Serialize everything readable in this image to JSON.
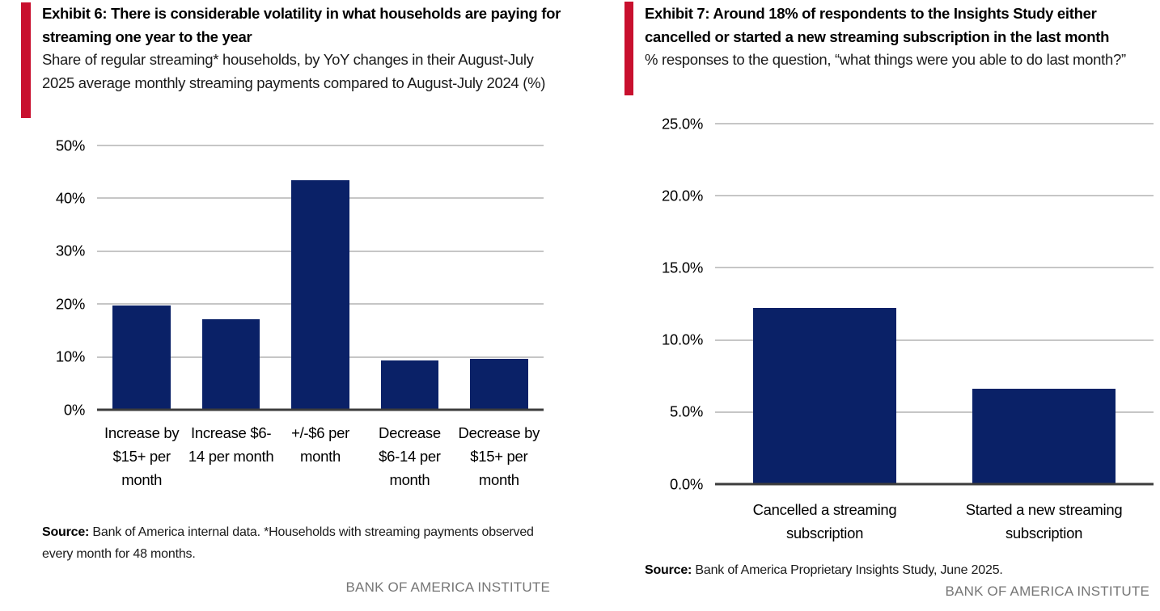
{
  "colors": {
    "accent_red": "#C8102E",
    "bar_navy": "#0A2167",
    "gridline_gray": "#C6C6C6",
    "axis_dark": "#3C3C3C",
    "institute_gray": "#767676"
  },
  "left_panel": {
    "exhibit_title": "Exhibit 6: There is considerable volatility in what households are paying for streaming one year to the year",
    "subtitle": "Share of regular streaming* households, by YoY changes in their August-July 2025 average monthly streaming payments compared to August-July 2024 (%)",
    "source_label": "Source:",
    "source_text": " Bank of America internal data. *Households with streaming payments observed every month for 48 months.",
    "institute": "BANK OF AMERICA INSTITUTE"
  },
  "right_panel": {
    "exhibit_title": "Exhibit 7: Around 18% of respondents to the Insights Study either cancelled or started a new streaming subscription in the last month",
    "subtitle": "% responses to the question, “what things were you able to do last month?”",
    "source_label": "Source:",
    "source_text": " Bank of America Proprietary Insights Study, June 2025.",
    "institute": "BANK OF AMERICA INSTITUTE"
  },
  "chart_data": [
    {
      "type": "bar",
      "title": "Exhibit 6: There is considerable volatility in what households are paying for streaming one year to the year",
      "subtitle": "Share of regular streaming* households, by YoY changes in their August-July 2025 average monthly streaming payments compared to August-July 2024 (%)",
      "categories": [
        "Increase by $15+ per month",
        "Increase $6-14 per month",
        "+/-$6 per month",
        "Decrease $6-14 per month",
        "Decrease by $15+ per month"
      ],
      "values": [
        19.7,
        17.1,
        43.5,
        9.3,
        9.6
      ],
      "unit": "%",
      "xlabel": "",
      "ylabel": "",
      "ylim": [
        0,
        50
      ],
      "ytick_step": 10,
      "yticks": [
        "0%",
        "10%",
        "20%",
        "30%",
        "40%",
        "50%"
      ],
      "grid": true,
      "legend": false,
      "bar_color": "#0A2167"
    },
    {
      "type": "bar",
      "title": "Exhibit 7: Around 18% of respondents to the Insights Study either cancelled or started a new streaming subscription in the last month",
      "subtitle": "% responses to the question, “what things were you able to do last month?”",
      "categories": [
        "Cancelled a streaming subscription",
        "Started a new streaming subscription"
      ],
      "values": [
        12.2,
        6.6
      ],
      "unit": "%",
      "xlabel": "",
      "ylabel": "",
      "ylim": [
        0,
        25
      ],
      "ytick_step": 5,
      "yticks": [
        "0.0%",
        "5.0%",
        "10.0%",
        "15.0%",
        "20.0%",
        "25.0%"
      ],
      "grid": true,
      "legend": false,
      "bar_color": "#0A2167"
    }
  ]
}
